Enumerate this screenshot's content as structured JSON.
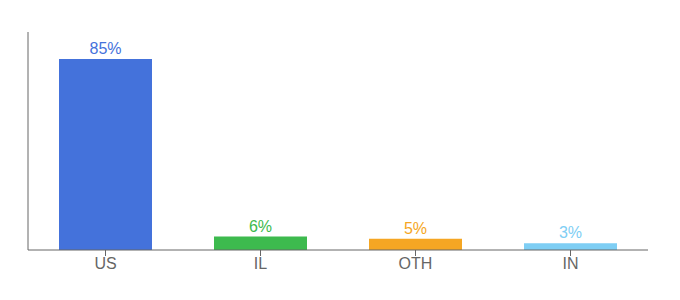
{
  "chart_data": {
    "type": "bar",
    "categories": [
      "US",
      "IL",
      "OTH",
      "IN"
    ],
    "values": [
      85,
      6,
      5,
      3
    ],
    "value_labels": [
      "85%",
      "6%",
      "5%",
      "3%"
    ],
    "colors": [
      "#4472db",
      "#3dba4e",
      "#f5a623",
      "#7ecef4"
    ],
    "ylim": [
      0,
      97
    ],
    "grid": false,
    "data_labels": true,
    "tick_labels": "x"
  }
}
